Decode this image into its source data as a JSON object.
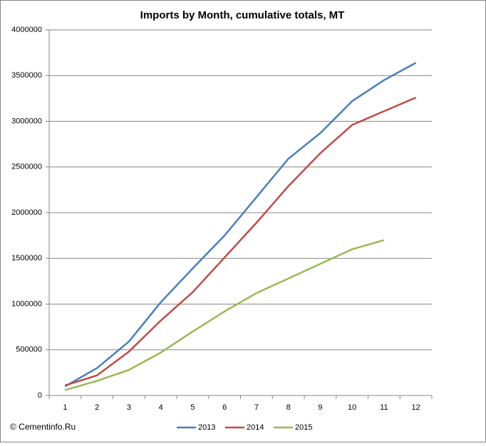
{
  "chart_data": {
    "type": "line",
    "title": "Imports by Month, cumulative totals, MT",
    "categories": [
      "1",
      "2",
      "3",
      "4",
      "5",
      "6",
      "7",
      "8",
      "9",
      "10",
      "11",
      "12"
    ],
    "series": [
      {
        "name": "2013",
        "color": "#4a7ebb",
        "values": [
          100000,
          300000,
          590000,
          1020000,
          1390000,
          1750000,
          2170000,
          2590000,
          2870000,
          3220000,
          3450000,
          3640000
        ]
      },
      {
        "name": "2014",
        "color": "#be4b48",
        "values": [
          110000,
          220000,
          480000,
          820000,
          1130000,
          1510000,
          1890000,
          2290000,
          2650000,
          2960000,
          3110000,
          3260000
        ]
      },
      {
        "name": "2015",
        "color": "#98b954",
        "values": [
          60000,
          160000,
          280000,
          470000,
          700000,
          920000,
          1120000,
          1280000,
          1440000,
          1600000,
          1700000,
          null
        ]
      }
    ],
    "ylim": [
      0,
      4000000
    ],
    "yticks": [
      0,
      500000,
      1000000,
      1500000,
      2000000,
      2500000,
      3000000,
      3500000,
      4000000
    ],
    "grid": true,
    "legend": "bottom",
    "annotation": "© Cementinfo.Ru"
  }
}
